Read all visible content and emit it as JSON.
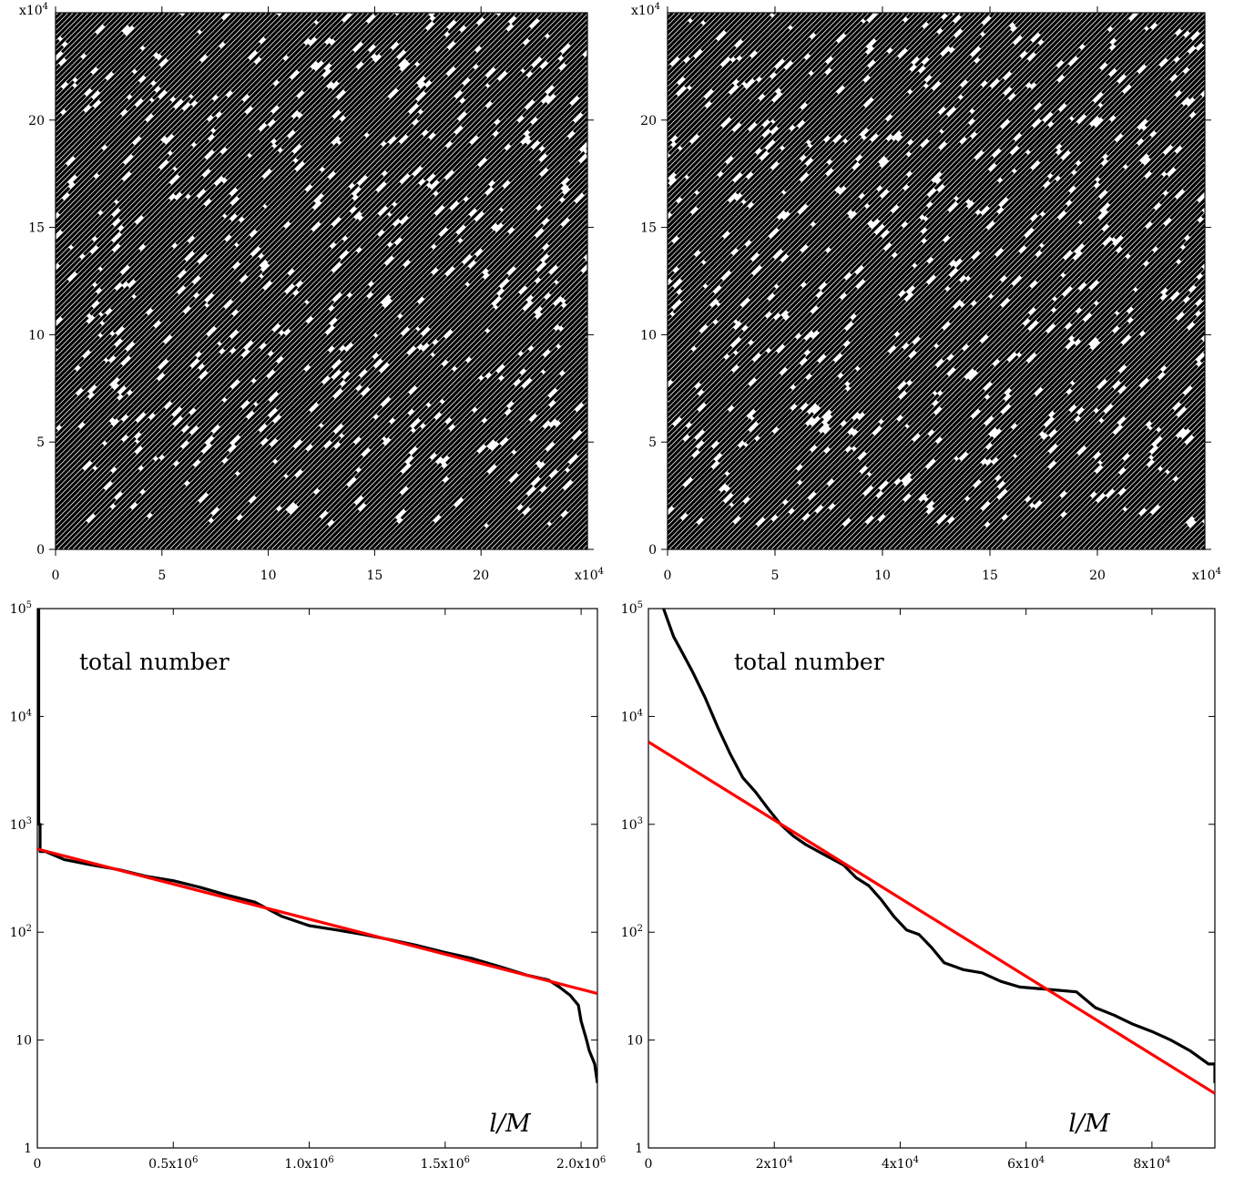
{
  "chart_data": [
    {
      "type": "scatter",
      "title": "",
      "xlabel": "",
      "ylabel": "",
      "xlim": [
        0,
        250000
      ],
      "ylim": [
        0,
        250000
      ],
      "x_ticks": [
        "0",
        "5",
        "10",
        "15",
        "20"
      ],
      "y_ticks": [
        "0",
        "5",
        "10",
        "15",
        "20"
      ],
      "x_multiplier": "x10",
      "y_multiplier": "x10",
      "multiplier_exponent": "4",
      "pattern": "dense diagonal lines with scattered white gaps",
      "colors": {
        "marks": "#000000",
        "background": "#ffffff"
      }
    },
    {
      "type": "scatter",
      "title": "",
      "xlabel": "",
      "ylabel": "",
      "xlim": [
        0,
        250000
      ],
      "ylim": [
        0,
        250000
      ],
      "x_ticks": [
        "0",
        "5",
        "10",
        "15",
        "20"
      ],
      "y_ticks": [
        "0",
        "5",
        "10",
        "15",
        "20"
      ],
      "x_multiplier": "x10",
      "y_multiplier": "x10",
      "multiplier_exponent": "4",
      "pattern": "dense diagonal lines with scattered white gaps",
      "colors": {
        "marks": "#000000",
        "background": "#ffffff"
      }
    },
    {
      "type": "line",
      "annotation": "total number",
      "xlabel": "l/M",
      "ylabel": "",
      "y_scale": "log",
      "xlim": [
        0,
        2060000
      ],
      "ylim": [
        1,
        100000
      ],
      "x_ticks": [
        {
          "value": 0,
          "base": "0",
          "exp": ""
        },
        {
          "value": 500000,
          "base": "0.5x10",
          "exp": "6"
        },
        {
          "value": 1000000,
          "base": "1.0x10",
          "exp": "6"
        },
        {
          "value": 1500000,
          "base": "1.5x10",
          "exp": "6"
        },
        {
          "value": 2000000,
          "base": "2.0x10",
          "exp": "6"
        }
      ],
      "y_ticks": [
        {
          "value": 1,
          "base": "1",
          "exp": ""
        },
        {
          "value": 10,
          "base": "10",
          "exp": ""
        },
        {
          "value": 100,
          "base": "10",
          "exp": "2"
        },
        {
          "value": 1000,
          "base": "10",
          "exp": "3"
        },
        {
          "value": 10000,
          "base": "10",
          "exp": "4"
        },
        {
          "value": 100000,
          "base": "10",
          "exp": "5"
        }
      ],
      "series": [
        {
          "color": "#000000",
          "x": [
            0,
            5000,
            5000,
            10000,
            10000,
            30000,
            100000,
            200000,
            300000,
            400000,
            500000,
            600000,
            700000,
            800000,
            900000,
            1000000,
            1100000,
            1200000,
            1300000,
            1400000,
            1500000,
            1600000,
            1700000,
            1800000,
            1880000,
            1920000,
            1960000,
            1990000,
            2000000,
            2020000,
            2030000,
            2050000,
            2060000
          ],
          "y": [
            100000,
            100000,
            1000,
            1000,
            560,
            560,
            470,
            420,
            380,
            330,
            300,
            260,
            220,
            190,
            140,
            115,
            105,
            95,
            85,
            75,
            65,
            57,
            48,
            40,
            36,
            31,
            26,
            21,
            15,
            10,
            8,
            6,
            4
          ]
        },
        {
          "color": "#ff0000",
          "x": [
            0,
            2060000
          ],
          "y": [
            590,
            27
          ]
        }
      ]
    },
    {
      "type": "line",
      "annotation": "total number",
      "xlabel": "l/M",
      "ylabel": "",
      "y_scale": "log",
      "xlim": [
        0,
        90000
      ],
      "ylim": [
        1,
        100000
      ],
      "x_ticks": [
        {
          "value": 0,
          "base": "0",
          "exp": ""
        },
        {
          "value": 20000,
          "base": "2x10",
          "exp": "4"
        },
        {
          "value": 40000,
          "base": "4x10",
          "exp": "4"
        },
        {
          "value": 60000,
          "base": "6x10",
          "exp": "4"
        },
        {
          "value": 80000,
          "base": "8x10",
          "exp": "4"
        }
      ],
      "y_ticks": [
        {
          "value": 1,
          "base": "1",
          "exp": ""
        },
        {
          "value": 10,
          "base": "10",
          "exp": ""
        },
        {
          "value": 100,
          "base": "10",
          "exp": "2"
        },
        {
          "value": 1000,
          "base": "10",
          "exp": "3"
        },
        {
          "value": 10000,
          "base": "10",
          "exp": "4"
        },
        {
          "value": 100000,
          "base": "10",
          "exp": "5"
        }
      ],
      "series": [
        {
          "color": "#000000",
          "x": [
            2400,
            3000,
            4000,
            5500,
            7000,
            9000,
            11000,
            13000,
            15000,
            17000,
            19000,
            21000,
            23000,
            25000,
            28000,
            31000,
            33000,
            35000,
            37000,
            39000,
            41000,
            43000,
            45000,
            47000,
            50000,
            53000,
            56000,
            59000,
            62000,
            65000,
            68000,
            71000,
            74000,
            77000,
            80000,
            83000,
            86000,
            89000,
            90000,
            90000
          ],
          "y": [
            100000,
            80000,
            55000,
            38000,
            26000,
            15000,
            8000,
            4500,
            2700,
            2000,
            1400,
            1000,
            780,
            650,
            520,
            420,
            320,
            270,
            200,
            140,
            105,
            95,
            72,
            52,
            45,
            42,
            35,
            31,
            30,
            29,
            28,
            20,
            17,
            14,
            12,
            10,
            8,
            6,
            6,
            4
          ]
        },
        {
          "color": "#ff0000",
          "x": [
            0,
            90000
          ],
          "y": [
            5800,
            3.2
          ]
        }
      ]
    }
  ]
}
